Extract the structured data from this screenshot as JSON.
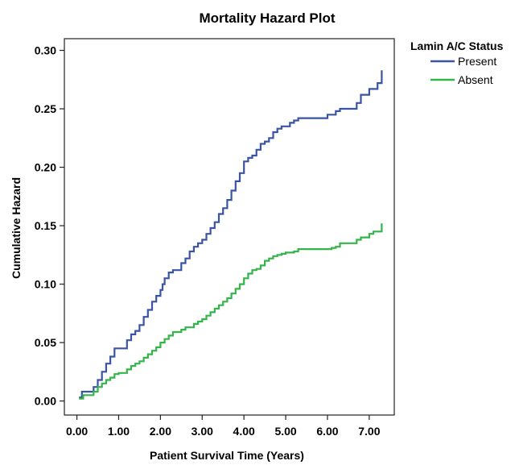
{
  "chart_data": {
    "type": "line",
    "title": "Mortality Hazard Plot",
    "xlabel": "Patient Survival Time (Years)",
    "ylabel": "Cumulative Hazard",
    "xlim": [
      -0.3,
      7.6
    ],
    "ylim": [
      -0.012,
      0.31
    ],
    "x_ticks": [
      0,
      1,
      2,
      3,
      4,
      5,
      6,
      7
    ],
    "x_tick_labels": [
      "0.00",
      "1.00",
      "2.00",
      "3.00",
      "4.00",
      "5.00",
      "6.00",
      "7.00"
    ],
    "y_ticks": [
      0,
      0.05,
      0.1,
      0.15,
      0.2,
      0.25,
      0.3
    ],
    "y_tick_labels": [
      "0.00",
      "0.05",
      "0.10",
      "0.15",
      "0.20",
      "0.25",
      "0.30"
    ],
    "grid": false,
    "legend": {
      "title": "Lamin A/C Status",
      "position": "top-right"
    },
    "series": [
      {
        "name": "Present",
        "color": "#3a54a4",
        "step": true,
        "x": [
          0.05,
          0.12,
          0.3,
          0.4,
          0.5,
          0.6,
          0.7,
          0.8,
          0.9,
          1.0,
          1.2,
          1.3,
          1.4,
          1.5,
          1.6,
          1.7,
          1.8,
          1.9,
          2.0,
          2.05,
          2.1,
          2.2,
          2.3,
          2.5,
          2.6,
          2.7,
          2.8,
          2.9,
          3.0,
          3.1,
          3.2,
          3.3,
          3.4,
          3.5,
          3.6,
          3.7,
          3.8,
          3.9,
          4.0,
          4.1,
          4.2,
          4.3,
          4.4,
          4.5,
          4.6,
          4.7,
          4.8,
          4.9,
          5.0,
          5.1,
          5.2,
          5.3,
          5.4,
          6.0,
          6.1,
          6.2,
          6.3,
          6.7,
          6.8,
          7.0,
          7.1,
          7.2,
          7.3
        ],
        "values": [
          0.003,
          0.008,
          0.008,
          0.012,
          0.018,
          0.025,
          0.032,
          0.038,
          0.045,
          0.045,
          0.052,
          0.057,
          0.06,
          0.065,
          0.072,
          0.078,
          0.085,
          0.09,
          0.095,
          0.1,
          0.105,
          0.11,
          0.112,
          0.118,
          0.122,
          0.128,
          0.132,
          0.135,
          0.138,
          0.143,
          0.148,
          0.153,
          0.16,
          0.165,
          0.172,
          0.18,
          0.188,
          0.195,
          0.205,
          0.208,
          0.21,
          0.215,
          0.22,
          0.222,
          0.225,
          0.23,
          0.233,
          0.235,
          0.235,
          0.238,
          0.24,
          0.242,
          0.242,
          0.245,
          0.245,
          0.248,
          0.25,
          0.255,
          0.262,
          0.267,
          0.267,
          0.272,
          0.283
        ]
      },
      {
        "name": "Absent",
        "color": "#33b54a",
        "step": true,
        "x": [
          0.05,
          0.15,
          0.3,
          0.4,
          0.5,
          0.6,
          0.7,
          0.8,
          0.9,
          1.0,
          1.2,
          1.3,
          1.4,
          1.5,
          1.6,
          1.7,
          1.8,
          1.9,
          2.0,
          2.1,
          2.2,
          2.3,
          2.5,
          2.6,
          2.8,
          2.9,
          3.0,
          3.1,
          3.2,
          3.3,
          3.4,
          3.5,
          3.6,
          3.7,
          3.8,
          3.9,
          4.0,
          4.1,
          4.2,
          4.3,
          4.4,
          4.5,
          4.6,
          4.7,
          4.8,
          4.9,
          5.0,
          5.2,
          5.3,
          6.0,
          6.1,
          6.2,
          6.3,
          6.7,
          6.8,
          7.0,
          7.1,
          7.3
        ],
        "values": [
          0.002,
          0.005,
          0.005,
          0.008,
          0.012,
          0.015,
          0.018,
          0.02,
          0.023,
          0.024,
          0.027,
          0.03,
          0.032,
          0.034,
          0.037,
          0.04,
          0.043,
          0.046,
          0.05,
          0.053,
          0.056,
          0.059,
          0.061,
          0.063,
          0.066,
          0.068,
          0.07,
          0.073,
          0.076,
          0.079,
          0.082,
          0.085,
          0.088,
          0.092,
          0.096,
          0.1,
          0.105,
          0.109,
          0.112,
          0.113,
          0.116,
          0.12,
          0.122,
          0.124,
          0.125,
          0.126,
          0.127,
          0.128,
          0.13,
          0.13,
          0.131,
          0.132,
          0.135,
          0.138,
          0.14,
          0.143,
          0.145,
          0.152
        ]
      }
    ]
  }
}
